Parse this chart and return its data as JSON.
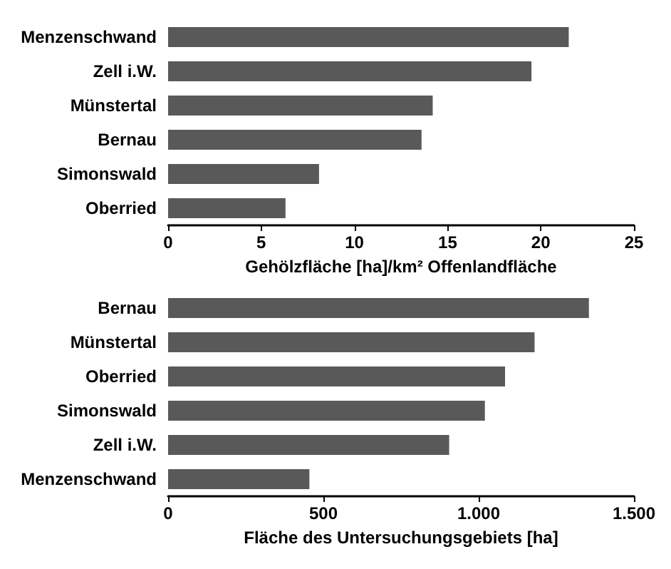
{
  "chart_data": [
    {
      "type": "bar",
      "orientation": "horizontal",
      "xlabel": "Gehölzfläche [ha]/km² Offenlandfläche",
      "categories": [
        "Menzenschwand",
        "Zell i.W.",
        "Münstertal",
        "Bernau",
        "Simonswald",
        "Oberried"
      ],
      "values": [
        21.5,
        19.5,
        14.2,
        13.6,
        8.1,
        6.3
      ],
      "color": "#595959",
      "xlim": [
        0,
        25
      ],
      "xticks": [
        0,
        5,
        10,
        15,
        20,
        25
      ],
      "grid": false
    },
    {
      "type": "bar",
      "orientation": "horizontal",
      "xlabel": "Fläche des Untersuchungsgebiets [ha]",
      "categories": [
        "Bernau",
        "Münstertal",
        "Oberried",
        "Simonswald",
        "Zell i.W.",
        "Menzenschwand"
      ],
      "values": [
        1355,
        1180,
        1085,
        1020,
        905,
        455
      ],
      "color": "#595959",
      "xlim": [
        0,
        1500
      ],
      "xticks": [
        0,
        500,
        {
          "value": 1000,
          "label": "1.000"
        },
        {
          "value": 1500,
          "label": "1.500"
        }
      ],
      "grid": false
    }
  ]
}
